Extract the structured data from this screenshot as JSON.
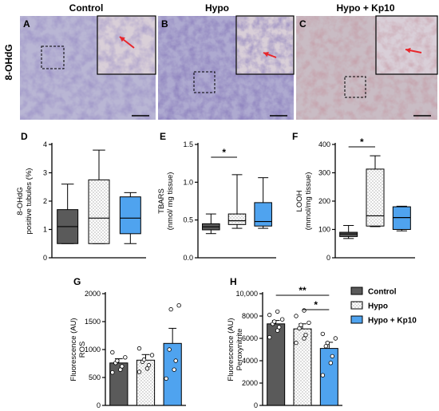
{
  "figure": {
    "row_label": "8-OHdG",
    "column_titles": [
      "Control",
      "Hypo",
      "Hypo + Kp10"
    ]
  },
  "micrographs": [
    {
      "letter": "A",
      "tone": "#b9b6d4"
    },
    {
      "letter": "B",
      "tone": "#aeaad0"
    },
    {
      "letter": "C",
      "tone": "#c9bcc4"
    }
  ],
  "chart_data": [
    {
      "panel": "D",
      "type": "box",
      "ylabel_lines": [
        "8-OHdG",
        "positive tubules (%)"
      ],
      "ylim": [
        0,
        4
      ],
      "yticks": [
        0,
        1,
        2,
        3,
        4
      ],
      "ytick_labels": [
        "0",
        "1",
        "2",
        "3",
        "4"
      ],
      "categories": [
        "Control",
        "Hypo",
        "Hypo + Kp10"
      ],
      "boxes": [
        {
          "min": 0.5,
          "q1": 0.5,
          "median": 1.1,
          "q3": 1.7,
          "max": 2.6
        },
        {
          "min": 0.5,
          "q1": 0.5,
          "median": 1.4,
          "q3": 2.75,
          "max": 3.8
        },
        {
          "min": 0.5,
          "q1": 0.85,
          "median": 1.4,
          "q3": 2.15,
          "max": 2.3
        }
      ],
      "significance": []
    },
    {
      "panel": "E",
      "type": "box",
      "ylabel_lines": [
        "TBARS",
        "(nmol/ mg tissue)"
      ],
      "ylim": [
        0,
        1.5
      ],
      "yticks": [
        0,
        0.5,
        1.0,
        1.5
      ],
      "ytick_labels": [
        "0.0",
        "0.5",
        "1.0",
        "1.5"
      ],
      "categories": [
        "Control",
        "Hypo",
        "Hypo + Kp10"
      ],
      "boxes": [
        {
          "min": 0.32,
          "q1": 0.37,
          "median": 0.41,
          "q3": 0.45,
          "max": 0.58
        },
        {
          "min": 0.39,
          "q1": 0.44,
          "median": 0.49,
          "q3": 0.58,
          "max": 1.1
        },
        {
          "min": 0.39,
          "q1": 0.42,
          "median": 0.48,
          "q3": 0.73,
          "max": 1.06
        }
      ],
      "significance": [
        {
          "from": 0,
          "to": 1,
          "label": "*"
        }
      ]
    },
    {
      "panel": "F",
      "type": "box",
      "ylabel_lines": [
        "LOOH",
        "(mmol/mg tissue)"
      ],
      "ylim": [
        0,
        400
      ],
      "yticks": [
        0,
        100,
        200,
        300,
        400
      ],
      "ytick_labels": [
        "0",
        "100",
        "200",
        "300",
        "400"
      ],
      "categories": [
        "Control",
        "Hypo",
        "Hypo + Kp10"
      ],
      "boxes": [
        {
          "min": 68,
          "q1": 75,
          "median": 84,
          "q3": 90,
          "max": 114
        },
        {
          "min": 110,
          "q1": 112,
          "median": 148,
          "q3": 313,
          "max": 360
        },
        {
          "min": 95,
          "q1": 100,
          "median": 142,
          "q3": 180,
          "max": 182
        }
      ],
      "significance": [
        {
          "from": 0,
          "to": 1,
          "label": "*"
        }
      ]
    },
    {
      "panel": "G",
      "type": "bar",
      "ylabel_lines": [
        "Fluorescence (AU)",
        "ROS"
      ],
      "ylim": [
        0,
        2000
      ],
      "yticks": [
        0,
        500,
        1000,
        1500,
        2000
      ],
      "ytick_labels": [
        "0",
        "500",
        "1000",
        "1500",
        "2000"
      ],
      "categories": [
        "Control",
        "Hypo",
        "Hypo + Kp10"
      ],
      "means": [
        760,
        810,
        1110
      ],
      "sem": [
        75,
        100,
        270
      ],
      "points": [
        [
          590,
          640,
          700,
          760,
          800,
          860,
          950
        ],
        [
          600,
          660,
          720,
          780,
          820,
          900,
          1020
        ],
        [
          480,
          640,
          800,
          1000,
          1720,
          1790
        ]
      ],
      "significance": []
    },
    {
      "panel": "H",
      "type": "bar",
      "ylabel_lines": [
        "Fluorescence (AU)",
        "Peroxynitrite"
      ],
      "ylim": [
        0,
        10000
      ],
      "yticks": [
        0,
        2000,
        4000,
        6000,
        8000,
        10000
      ],
      "ytick_labels": [
        "0",
        "2000",
        "4000",
        "6000",
        "8000",
        "10,000"
      ],
      "categories": [
        "Control",
        "Hypo",
        "Hypo + Kp10"
      ],
      "means": [
        7300,
        6850,
        5100
      ],
      "sem": [
        300,
        450,
        550
      ],
      "points": [
        [
          6100,
          6700,
          7000,
          7300,
          7500,
          7700,
          8100,
          8400
        ],
        [
          5600,
          6000,
          6300,
          6900,
          7200,
          7400,
          8000,
          8500
        ],
        [
          2700,
          3800,
          4400,
          5300,
          5600,
          6000,
          6400
        ]
      ],
      "significance": [
        {
          "from": 0,
          "to": 2,
          "label": "**"
        },
        {
          "from": 1,
          "to": 2,
          "label": "*"
        }
      ]
    }
  ],
  "legend": {
    "placement": "right",
    "entries": [
      {
        "label": "Control",
        "fill": "#5a5a5a",
        "pattern": "none"
      },
      {
        "label": "Hypo",
        "fill": "#ffffff",
        "pattern": "dots"
      },
      {
        "label": "Hypo + Kp10",
        "fill": "#4fa3ef",
        "pattern": "none"
      }
    ]
  },
  "colors": {
    "control": "#5a5a5a",
    "hypo": "#ffffff",
    "kp10": "#4fa3ef",
    "arrow": "#e8262b",
    "axis": "#000000"
  }
}
